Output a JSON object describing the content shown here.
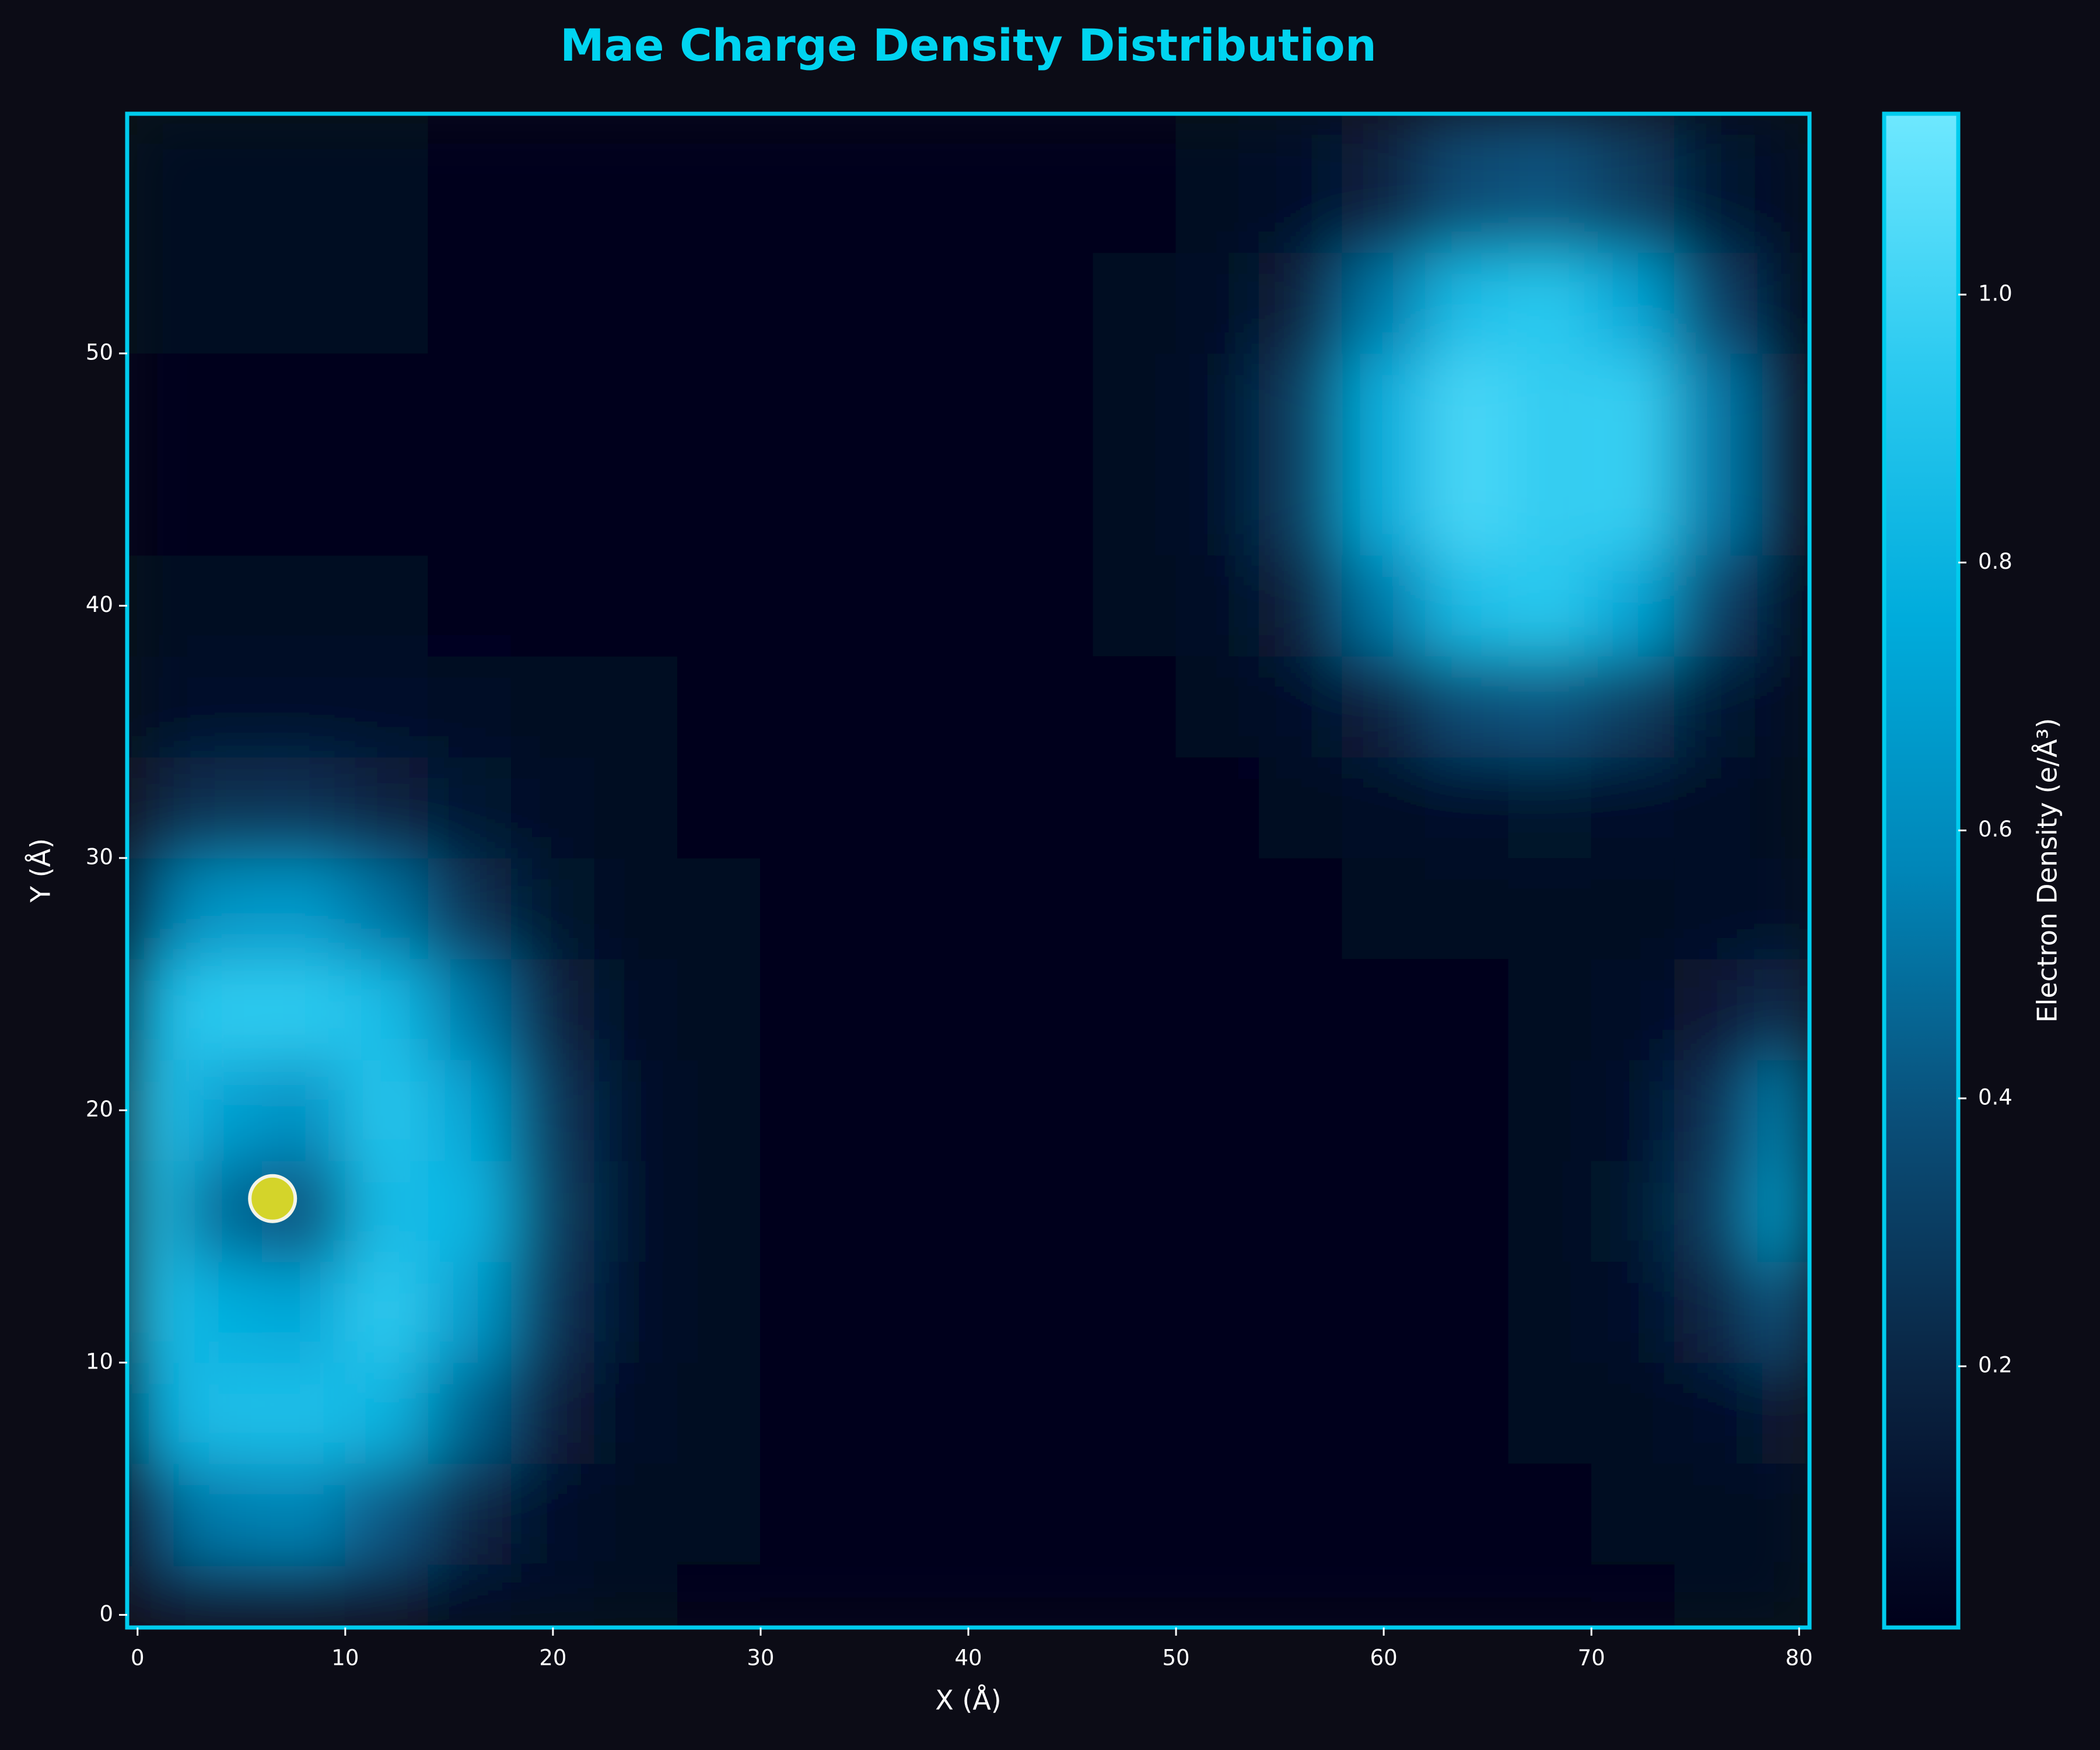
{
  "chart_data": {
    "type": "heatmap",
    "title": "Mae Charge Density Distribution",
    "x_label": "X (Å)",
    "y_label": "Y (Å)",
    "colorbar_label": "Electron Density (e/Å³)",
    "x": [
      0,
      4,
      8,
      12,
      16,
      20,
      24,
      28,
      32,
      36,
      40,
      44,
      48,
      52,
      56,
      60,
      64,
      68,
      72,
      76,
      80
    ],
    "y": [
      0,
      4,
      8,
      12,
      16,
      20,
      24,
      28,
      32,
      36,
      40,
      44,
      48,
      52,
      56
    ],
    "z": [
      [
        0.14,
        0.18,
        0.18,
        0.15,
        0.09,
        0.06,
        0.04,
        0.03,
        0.02,
        0.02,
        0.02,
        0.02,
        0.02,
        0.02,
        0.02,
        0.02,
        0.03,
        0.03,
        0.03,
        0.04,
        0.05
      ],
      [
        0.35,
        0.54,
        0.56,
        0.42,
        0.2,
        0.09,
        0.05,
        0.04,
        0.03,
        0.02,
        0.02,
        0.02,
        0.02,
        0.02,
        0.02,
        0.02,
        0.02,
        0.03,
        0.04,
        0.05,
        0.07
      ],
      [
        0.72,
        0.87,
        0.88,
        0.8,
        0.45,
        0.16,
        0.07,
        0.04,
        0.03,
        0.02,
        0.02,
        0.02,
        0.02,
        0.02,
        0.02,
        0.02,
        0.03,
        0.04,
        0.05,
        0.09,
        0.14
      ],
      [
        0.92,
        0.78,
        0.73,
        0.95,
        0.68,
        0.26,
        0.08,
        0.04,
        0.03,
        0.02,
        0.02,
        0.02,
        0.02,
        0.02,
        0.02,
        0.02,
        0.03,
        0.04,
        0.08,
        0.2,
        0.42
      ],
      [
        0.93,
        0.48,
        0.38,
        0.86,
        0.82,
        0.3,
        0.09,
        0.04,
        0.03,
        0.02,
        0.02,
        0.02,
        0.02,
        0.02,
        0.02,
        0.02,
        0.03,
        0.05,
        0.1,
        0.3,
        0.73
      ],
      [
        0.95,
        0.7,
        0.62,
        0.92,
        0.72,
        0.27,
        0.08,
        0.04,
        0.03,
        0.02,
        0.02,
        0.02,
        0.02,
        0.02,
        0.02,
        0.02,
        0.03,
        0.05,
        0.09,
        0.26,
        0.6
      ],
      [
        0.8,
        0.95,
        0.95,
        0.86,
        0.52,
        0.18,
        0.07,
        0.04,
        0.03,
        0.02,
        0.02,
        0.02,
        0.02,
        0.02,
        0.02,
        0.02,
        0.03,
        0.04,
        0.06,
        0.13,
        0.26
      ],
      [
        0.45,
        0.64,
        0.66,
        0.5,
        0.25,
        0.1,
        0.05,
        0.04,
        0.03,
        0.02,
        0.02,
        0.02,
        0.02,
        0.03,
        0.03,
        0.04,
        0.04,
        0.04,
        0.05,
        0.07,
        0.09
      ],
      [
        0.17,
        0.25,
        0.26,
        0.18,
        0.11,
        0.06,
        0.04,
        0.03,
        0.02,
        0.02,
        0.02,
        0.02,
        0.02,
        0.03,
        0.05,
        0.07,
        0.09,
        0.1,
        0.08,
        0.06,
        0.05
      ],
      [
        0.07,
        0.09,
        0.09,
        0.08,
        0.06,
        0.05,
        0.04,
        0.03,
        0.02,
        0.02,
        0.02,
        0.02,
        0.03,
        0.05,
        0.09,
        0.19,
        0.37,
        0.4,
        0.3,
        0.12,
        0.07
      ],
      [
        0.04,
        0.04,
        0.04,
        0.04,
        0.03,
        0.03,
        0.03,
        0.02,
        0.02,
        0.02,
        0.02,
        0.02,
        0.04,
        0.07,
        0.17,
        0.52,
        0.87,
        0.94,
        0.73,
        0.32,
        0.09
      ],
      [
        0.03,
        0.03,
        0.03,
        0.03,
        0.03,
        0.02,
        0.02,
        0.02,
        0.02,
        0.02,
        0.02,
        0.02,
        0.04,
        0.09,
        0.3,
        0.77,
        1.03,
        0.96,
        0.98,
        0.52,
        0.14
      ],
      [
        0.03,
        0.03,
        0.03,
        0.03,
        0.03,
        0.02,
        0.02,
        0.02,
        0.02,
        0.02,
        0.02,
        0.02,
        0.04,
        0.09,
        0.3,
        0.77,
        1.03,
        0.96,
        0.98,
        0.52,
        0.14
      ],
      [
        0.04,
        0.04,
        0.04,
        0.04,
        0.03,
        0.03,
        0.03,
        0.02,
        0.02,
        0.02,
        0.02,
        0.02,
        0.04,
        0.07,
        0.17,
        0.52,
        0.87,
        0.94,
        0.73,
        0.32,
        0.09
      ],
      [
        0.05,
        0.05,
        0.04,
        0.04,
        0.03,
        0.03,
        0.03,
        0.02,
        0.02,
        0.02,
        0.02,
        0.02,
        0.03,
        0.05,
        0.09,
        0.19,
        0.37,
        0.4,
        0.3,
        0.12,
        0.07
      ]
    ],
    "marker": {
      "x": 6.5,
      "y": 16.5,
      "color": "#d4d42a"
    },
    "xlim": [
      -0.5,
      80.5
    ],
    "ylim": [
      -0.5,
      59.5
    ],
    "xticks": [
      0,
      10,
      20,
      30,
      40,
      50,
      60,
      70,
      80
    ],
    "yticks": [
      0,
      10,
      20,
      30,
      40,
      50
    ],
    "vlim": [
      0.005,
      1.135
    ],
    "vticks": [
      0.2,
      0.4,
      0.6,
      0.8,
      {
        "value": 1,
        "label": "1.0"
      }
    ],
    "colormap": [
      "#00001a",
      "#0a2442",
      "#0a4e78",
      "#0086b8",
      "#00acdc",
      "#2ccaf0",
      "#6ee8ff"
    ],
    "frame_color": "#00ccee",
    "title_color": "#00d4f0"
  }
}
